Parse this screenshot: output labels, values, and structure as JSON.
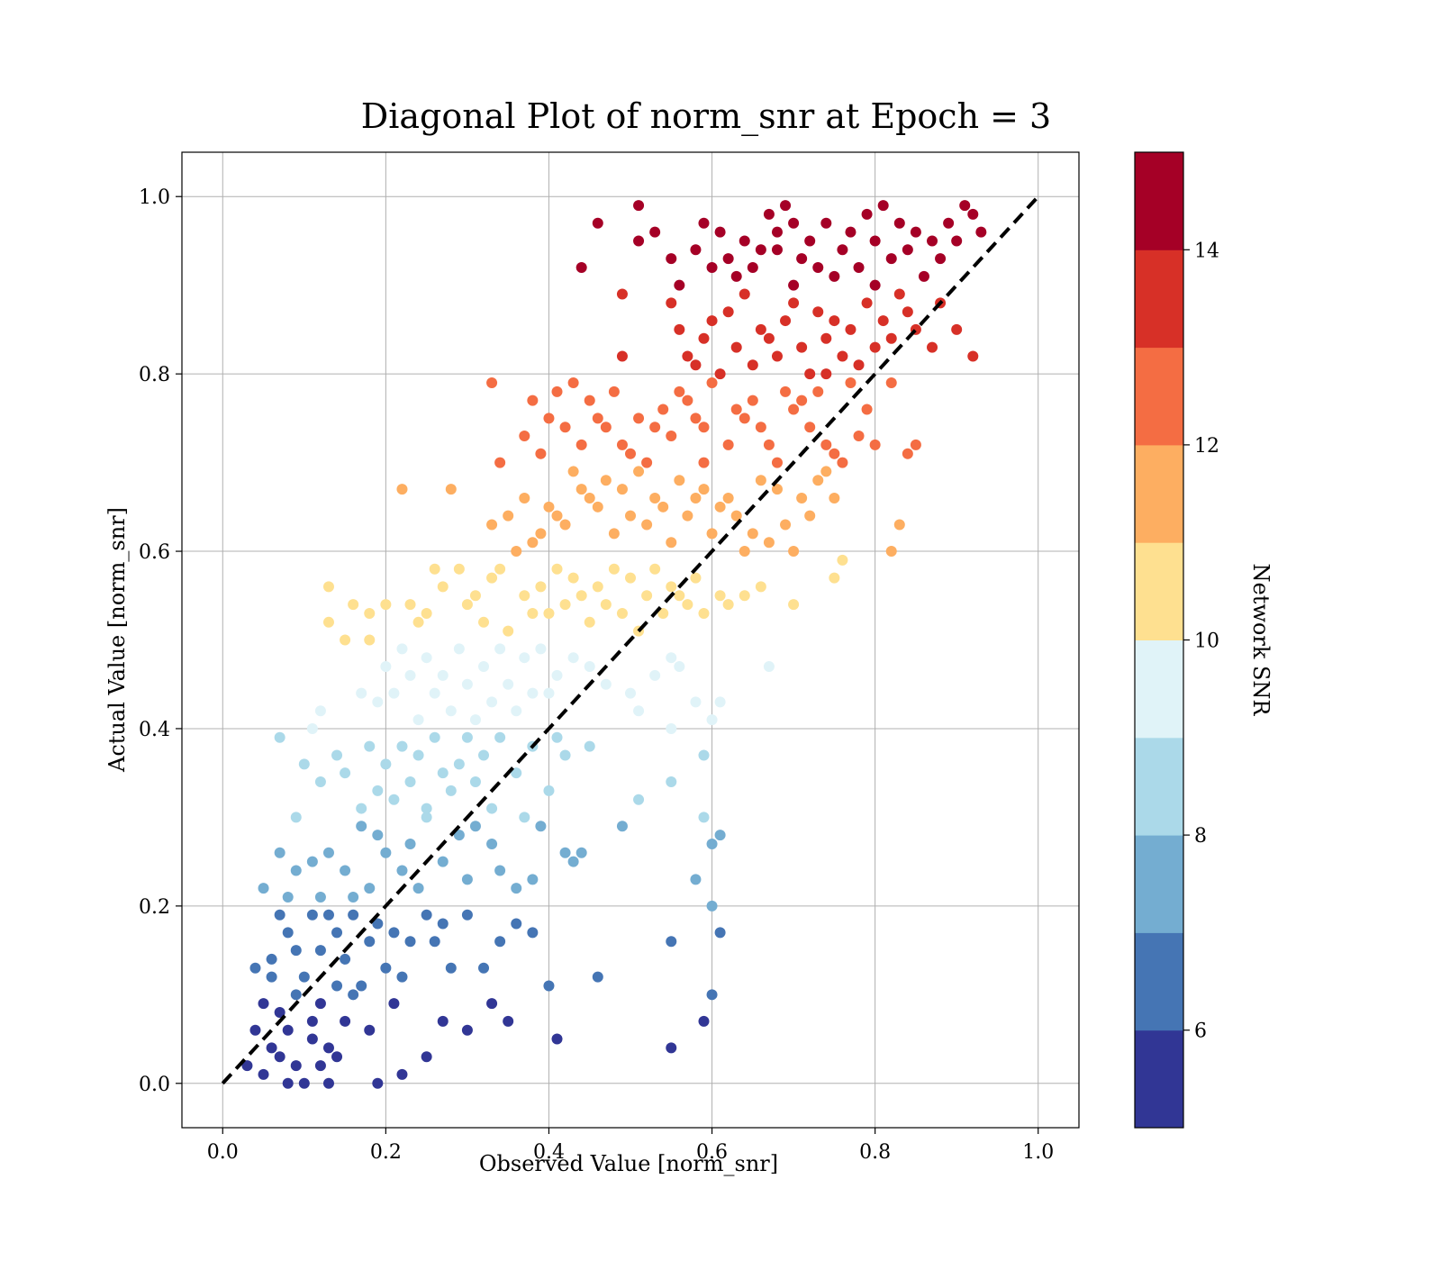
{
  "chart_data": {
    "type": "scatter",
    "title": "Diagonal Plot of norm_snr at Epoch = 3",
    "xlabel": "Observed Value [norm_snr]",
    "ylabel": "Actual Value [norm_snr]",
    "xlim": [
      -0.05,
      1.05
    ],
    "ylim": [
      -0.05,
      1.05
    ],
    "xticks": [
      0.0,
      0.2,
      0.4,
      0.6,
      0.8,
      1.0
    ],
    "yticks": [
      0.0,
      0.2,
      0.4,
      0.6,
      0.8,
      1.0
    ],
    "xtick_labels": [
      "0.0",
      "0.2",
      "0.4",
      "0.6",
      "0.8",
      "1.0"
    ],
    "ytick_labels": [
      "0.0",
      "0.2",
      "0.4",
      "0.6",
      "0.8",
      "1.0"
    ],
    "grid": true,
    "reference_line": {
      "x": [
        0,
        1
      ],
      "y": [
        0,
        1
      ],
      "style": "dashed",
      "color": "#000000"
    },
    "colorbar": {
      "label": "Network SNR",
      "range": [
        5,
        15
      ],
      "ticks": [
        6,
        8,
        10,
        12,
        14
      ],
      "tick_labels": [
        "6",
        "8",
        "10",
        "12",
        "14"
      ],
      "colors": [
        "#313695",
        "#4575b4",
        "#74add1",
        "#abd9e9",
        "#e0f3f8",
        "#fee090",
        "#fdae61",
        "#f46d43",
        "#d73027",
        "#a50026"
      ]
    },
    "points": [
      [
        0.03,
        0.02
      ],
      [
        0.05,
        0.01
      ],
      [
        0.06,
        0.04
      ],
      [
        0.07,
        0.03
      ],
      [
        0.08,
        0.06
      ],
      [
        0.09,
        0.02
      ],
      [
        0.1,
        0.0
      ],
      [
        0.11,
        0.05
      ],
      [
        0.12,
        0.09
      ],
      [
        0.13,
        0.0
      ],
      [
        0.14,
        0.03
      ],
      [
        0.15,
        0.07
      ],
      [
        0.05,
        0.09
      ],
      [
        0.07,
        0.08
      ],
      [
        0.09,
        0.1
      ],
      [
        0.11,
        0.07
      ],
      [
        0.13,
        0.04
      ],
      [
        0.16,
        0.1
      ],
      [
        0.18,
        0.06
      ],
      [
        0.19,
        0.0
      ],
      [
        0.21,
        0.09
      ],
      [
        0.22,
        0.01
      ],
      [
        0.25,
        0.03
      ],
      [
        0.27,
        0.07
      ],
      [
        0.3,
        0.06
      ],
      [
        0.33,
        0.09
      ],
      [
        0.35,
        0.07
      ],
      [
        0.41,
        0.05
      ],
      [
        0.55,
        0.04
      ],
      [
        0.59,
        0.07
      ],
      [
        0.6,
        0.1
      ],
      [
        0.08,
        0.0
      ],
      [
        0.12,
        0.02
      ],
      [
        0.04,
        0.06
      ],
      [
        0.06,
        0.12
      ],
      [
        0.04,
        0.13
      ],
      [
        0.06,
        0.14
      ],
      [
        0.08,
        0.17
      ],
      [
        0.1,
        0.12
      ],
      [
        0.11,
        0.19
      ],
      [
        0.12,
        0.15
      ],
      [
        0.13,
        0.19
      ],
      [
        0.14,
        0.17
      ],
      [
        0.15,
        0.14
      ],
      [
        0.16,
        0.19
      ],
      [
        0.17,
        0.11
      ],
      [
        0.18,
        0.16
      ],
      [
        0.2,
        0.13
      ],
      [
        0.21,
        0.17
      ],
      [
        0.22,
        0.12
      ],
      [
        0.23,
        0.16
      ],
      [
        0.25,
        0.19
      ],
      [
        0.26,
        0.16
      ],
      [
        0.28,
        0.13
      ],
      [
        0.3,
        0.19
      ],
      [
        0.32,
        0.13
      ],
      [
        0.34,
        0.16
      ],
      [
        0.36,
        0.18
      ],
      [
        0.38,
        0.17
      ],
      [
        0.4,
        0.11
      ],
      [
        0.46,
        0.12
      ],
      [
        0.55,
        0.16
      ],
      [
        0.6,
        0.2
      ],
      [
        0.61,
        0.17
      ],
      [
        0.07,
        0.19
      ],
      [
        0.09,
        0.15
      ],
      [
        0.14,
        0.11
      ],
      [
        0.19,
        0.18
      ],
      [
        0.27,
        0.18
      ],
      [
        0.05,
        0.22
      ],
      [
        0.07,
        0.26
      ],
      [
        0.09,
        0.24
      ],
      [
        0.11,
        0.25
      ],
      [
        0.12,
        0.21
      ],
      [
        0.13,
        0.26
      ],
      [
        0.15,
        0.24
      ],
      [
        0.17,
        0.29
      ],
      [
        0.18,
        0.22
      ],
      [
        0.19,
        0.28
      ],
      [
        0.2,
        0.26
      ],
      [
        0.22,
        0.24
      ],
      [
        0.23,
        0.27
      ],
      [
        0.24,
        0.22
      ],
      [
        0.25,
        0.3
      ],
      [
        0.27,
        0.25
      ],
      [
        0.29,
        0.28
      ],
      [
        0.3,
        0.23
      ],
      [
        0.31,
        0.29
      ],
      [
        0.33,
        0.27
      ],
      [
        0.34,
        0.24
      ],
      [
        0.36,
        0.22
      ],
      [
        0.38,
        0.23
      ],
      [
        0.39,
        0.29
      ],
      [
        0.42,
        0.26
      ],
      [
        0.43,
        0.25
      ],
      [
        0.44,
        0.26
      ],
      [
        0.49,
        0.29
      ],
      [
        0.58,
        0.23
      ],
      [
        0.6,
        0.27
      ],
      [
        0.61,
        0.28
      ],
      [
        0.08,
        0.21
      ],
      [
        0.16,
        0.21
      ],
      [
        0.07,
        0.39
      ],
      [
        0.1,
        0.36
      ],
      [
        0.12,
        0.34
      ],
      [
        0.14,
        0.37
      ],
      [
        0.15,
        0.35
      ],
      [
        0.17,
        0.31
      ],
      [
        0.18,
        0.38
      ],
      [
        0.19,
        0.33
      ],
      [
        0.2,
        0.36
      ],
      [
        0.21,
        0.32
      ],
      [
        0.22,
        0.38
      ],
      [
        0.23,
        0.34
      ],
      [
        0.24,
        0.37
      ],
      [
        0.25,
        0.31
      ],
      [
        0.26,
        0.39
      ],
      [
        0.27,
        0.35
      ],
      [
        0.28,
        0.33
      ],
      [
        0.29,
        0.36
      ],
      [
        0.3,
        0.39
      ],
      [
        0.31,
        0.34
      ],
      [
        0.32,
        0.37
      ],
      [
        0.33,
        0.31
      ],
      [
        0.34,
        0.39
      ],
      [
        0.36,
        0.35
      ],
      [
        0.37,
        0.3
      ],
      [
        0.38,
        0.38
      ],
      [
        0.4,
        0.33
      ],
      [
        0.41,
        0.39
      ],
      [
        0.42,
        0.37
      ],
      [
        0.45,
        0.38
      ],
      [
        0.51,
        0.32
      ],
      [
        0.55,
        0.34
      ],
      [
        0.55,
        0.4
      ],
      [
        0.59,
        0.37
      ],
      [
        0.59,
        0.3
      ],
      [
        0.09,
        0.3
      ],
      [
        0.12,
        0.42
      ],
      [
        0.15,
        0.5
      ],
      [
        0.17,
        0.44
      ],
      [
        0.18,
        0.5
      ],
      [
        0.19,
        0.43
      ],
      [
        0.2,
        0.47
      ],
      [
        0.21,
        0.44
      ],
      [
        0.22,
        0.49
      ],
      [
        0.23,
        0.46
      ],
      [
        0.24,
        0.41
      ],
      [
        0.25,
        0.48
      ],
      [
        0.26,
        0.44
      ],
      [
        0.27,
        0.46
      ],
      [
        0.28,
        0.42
      ],
      [
        0.29,
        0.49
      ],
      [
        0.3,
        0.45
      ],
      [
        0.31,
        0.41
      ],
      [
        0.32,
        0.47
      ],
      [
        0.33,
        0.43
      ],
      [
        0.34,
        0.49
      ],
      [
        0.35,
        0.45
      ],
      [
        0.36,
        0.42
      ],
      [
        0.37,
        0.48
      ],
      [
        0.38,
        0.44
      ],
      [
        0.39,
        0.49
      ],
      [
        0.4,
        0.44
      ],
      [
        0.41,
        0.46
      ],
      [
        0.43,
        0.48
      ],
      [
        0.45,
        0.47
      ],
      [
        0.47,
        0.45
      ],
      [
        0.5,
        0.44
      ],
      [
        0.51,
        0.42
      ],
      [
        0.53,
        0.46
      ],
      [
        0.55,
        0.48
      ],
      [
        0.56,
        0.47
      ],
      [
        0.58,
        0.43
      ],
      [
        0.6,
        0.41
      ],
      [
        0.61,
        0.43
      ],
      [
        0.67,
        0.47
      ],
      [
        0.11,
        0.4
      ],
      [
        0.13,
        0.52
      ],
      [
        0.13,
        0.56
      ],
      [
        0.16,
        0.54
      ],
      [
        0.18,
        0.53
      ],
      [
        0.2,
        0.54
      ],
      [
        0.23,
        0.54
      ],
      [
        0.24,
        0.52
      ],
      [
        0.25,
        0.53
      ],
      [
        0.26,
        0.58
      ],
      [
        0.27,
        0.56
      ],
      [
        0.29,
        0.58
      ],
      [
        0.3,
        0.54
      ],
      [
        0.31,
        0.55
      ],
      [
        0.32,
        0.52
      ],
      [
        0.33,
        0.57
      ],
      [
        0.34,
        0.58
      ],
      [
        0.35,
        0.51
      ],
      [
        0.37,
        0.55
      ],
      [
        0.38,
        0.53
      ],
      [
        0.39,
        0.56
      ],
      [
        0.4,
        0.53
      ],
      [
        0.41,
        0.58
      ],
      [
        0.42,
        0.54
      ],
      [
        0.43,
        0.57
      ],
      [
        0.44,
        0.55
      ],
      [
        0.45,
        0.52
      ],
      [
        0.46,
        0.56
      ],
      [
        0.47,
        0.54
      ],
      [
        0.48,
        0.58
      ],
      [
        0.49,
        0.53
      ],
      [
        0.5,
        0.57
      ],
      [
        0.51,
        0.51
      ],
      [
        0.52,
        0.55
      ],
      [
        0.53,
        0.58
      ],
      [
        0.54,
        0.53
      ],
      [
        0.55,
        0.56
      ],
      [
        0.56,
        0.55
      ],
      [
        0.57,
        0.54
      ],
      [
        0.58,
        0.57
      ],
      [
        0.59,
        0.53
      ],
      [
        0.61,
        0.55
      ],
      [
        0.62,
        0.54
      ],
      [
        0.64,
        0.55
      ],
      [
        0.66,
        0.56
      ],
      [
        0.7,
        0.54
      ],
      [
        0.75,
        0.57
      ],
      [
        0.76,
        0.59
      ],
      [
        0.82,
        0.6
      ],
      [
        0.22,
        0.67
      ],
      [
        0.28,
        0.67
      ],
      [
        0.33,
        0.63
      ],
      [
        0.35,
        0.64
      ],
      [
        0.36,
        0.6
      ],
      [
        0.37,
        0.66
      ],
      [
        0.38,
        0.61
      ],
      [
        0.39,
        0.62
      ],
      [
        0.4,
        0.65
      ],
      [
        0.41,
        0.64
      ],
      [
        0.42,
        0.63
      ],
      [
        0.43,
        0.69
      ],
      [
        0.44,
        0.67
      ],
      [
        0.45,
        0.66
      ],
      [
        0.46,
        0.65
      ],
      [
        0.47,
        0.68
      ],
      [
        0.48,
        0.62
      ],
      [
        0.49,
        0.67
      ],
      [
        0.5,
        0.64
      ],
      [
        0.51,
        0.69
      ],
      [
        0.52,
        0.63
      ],
      [
        0.53,
        0.66
      ],
      [
        0.54,
        0.65
      ],
      [
        0.55,
        0.61
      ],
      [
        0.56,
        0.68
      ],
      [
        0.57,
        0.64
      ],
      [
        0.58,
        0.66
      ],
      [
        0.59,
        0.67
      ],
      [
        0.6,
        0.62
      ],
      [
        0.61,
        0.65
      ],
      [
        0.62,
        0.66
      ],
      [
        0.63,
        0.64
      ],
      [
        0.64,
        0.6
      ],
      [
        0.65,
        0.62
      ],
      [
        0.66,
        0.68
      ],
      [
        0.67,
        0.61
      ],
      [
        0.68,
        0.67
      ],
      [
        0.69,
        0.63
      ],
      [
        0.7,
        0.6
      ],
      [
        0.71,
        0.66
      ],
      [
        0.72,
        0.64
      ],
      [
        0.73,
        0.68
      ],
      [
        0.74,
        0.69
      ],
      [
        0.75,
        0.66
      ],
      [
        0.83,
        0.63
      ],
      [
        0.59,
        0.7
      ],
      [
        0.33,
        0.79
      ],
      [
        0.34,
        0.7
      ],
      [
        0.37,
        0.73
      ],
      [
        0.38,
        0.77
      ],
      [
        0.39,
        0.71
      ],
      [
        0.4,
        0.75
      ],
      [
        0.41,
        0.78
      ],
      [
        0.42,
        0.74
      ],
      [
        0.43,
        0.79
      ],
      [
        0.44,
        0.72
      ],
      [
        0.45,
        0.77
      ],
      [
        0.46,
        0.75
      ],
      [
        0.47,
        0.74
      ],
      [
        0.48,
        0.78
      ],
      [
        0.49,
        0.72
      ],
      [
        0.5,
        0.71
      ],
      [
        0.51,
        0.75
      ],
      [
        0.52,
        0.7
      ],
      [
        0.53,
        0.74
      ],
      [
        0.54,
        0.76
      ],
      [
        0.55,
        0.73
      ],
      [
        0.56,
        0.78
      ],
      [
        0.57,
        0.77
      ],
      [
        0.58,
        0.75
      ],
      [
        0.59,
        0.74
      ],
      [
        0.6,
        0.79
      ],
      [
        0.62,
        0.72
      ],
      [
        0.63,
        0.76
      ],
      [
        0.64,
        0.75
      ],
      [
        0.65,
        0.77
      ],
      [
        0.66,
        0.74
      ],
      [
        0.67,
        0.72
      ],
      [
        0.68,
        0.7
      ],
      [
        0.69,
        0.78
      ],
      [
        0.7,
        0.76
      ],
      [
        0.71,
        0.77
      ],
      [
        0.72,
        0.74
      ],
      [
        0.73,
        0.78
      ],
      [
        0.74,
        0.72
      ],
      [
        0.75,
        0.71
      ],
      [
        0.76,
        0.7
      ],
      [
        0.77,
        0.79
      ],
      [
        0.78,
        0.73
      ],
      [
        0.79,
        0.76
      ],
      [
        0.8,
        0.72
      ],
      [
        0.82,
        0.79
      ],
      [
        0.84,
        0.71
      ],
      [
        0.85,
        0.72
      ],
      [
        0.49,
        0.89
      ],
      [
        0.49,
        0.82
      ],
      [
        0.55,
        0.88
      ],
      [
        0.56,
        0.85
      ],
      [
        0.57,
        0.82
      ],
      [
        0.58,
        0.81
      ],
      [
        0.59,
        0.84
      ],
      [
        0.6,
        0.86
      ],
      [
        0.61,
        0.8
      ],
      [
        0.62,
        0.87
      ],
      [
        0.63,
        0.83
      ],
      [
        0.64,
        0.89
      ],
      [
        0.65,
        0.81
      ],
      [
        0.66,
        0.85
      ],
      [
        0.67,
        0.84
      ],
      [
        0.68,
        0.82
      ],
      [
        0.69,
        0.86
      ],
      [
        0.7,
        0.88
      ],
      [
        0.71,
        0.83
      ],
      [
        0.72,
        0.8
      ],
      [
        0.73,
        0.87
      ],
      [
        0.74,
        0.84
      ],
      [
        0.75,
        0.86
      ],
      [
        0.76,
        0.82
      ],
      [
        0.77,
        0.85
      ],
      [
        0.78,
        0.81
      ],
      [
        0.79,
        0.88
      ],
      [
        0.8,
        0.83
      ],
      [
        0.81,
        0.86
      ],
      [
        0.82,
        0.84
      ],
      [
        0.83,
        0.89
      ],
      [
        0.84,
        0.87
      ],
      [
        0.85,
        0.85
      ],
      [
        0.87,
        0.83
      ],
      [
        0.88,
        0.88
      ],
      [
        0.9,
        0.85
      ],
      [
        0.92,
        0.82
      ],
      [
        0.74,
        0.8
      ],
      [
        0.46,
        0.97
      ],
      [
        0.44,
        0.92
      ],
      [
        0.51,
        0.99
      ],
      [
        0.51,
        0.95
      ],
      [
        0.53,
        0.96
      ],
      [
        0.55,
        0.93
      ],
      [
        0.56,
        0.9
      ],
      [
        0.58,
        0.94
      ],
      [
        0.59,
        0.97
      ],
      [
        0.6,
        0.92
      ],
      [
        0.61,
        0.96
      ],
      [
        0.62,
        0.93
      ],
      [
        0.63,
        0.91
      ],
      [
        0.64,
        0.95
      ],
      [
        0.65,
        0.92
      ],
      [
        0.66,
        0.94
      ],
      [
        0.67,
        0.98
      ],
      [
        0.68,
        0.96
      ],
      [
        0.69,
        0.99
      ],
      [
        0.7,
        0.97
      ],
      [
        0.71,
        0.93
      ],
      [
        0.72,
        0.95
      ],
      [
        0.73,
        0.92
      ],
      [
        0.74,
        0.97
      ],
      [
        0.75,
        0.91
      ],
      [
        0.76,
        0.94
      ],
      [
        0.77,
        0.96
      ],
      [
        0.78,
        0.92
      ],
      [
        0.79,
        0.98
      ],
      [
        0.8,
        0.95
      ],
      [
        0.81,
        0.99
      ],
      [
        0.82,
        0.93
      ],
      [
        0.83,
        0.97
      ],
      [
        0.84,
        0.94
      ],
      [
        0.85,
        0.96
      ],
      [
        0.86,
        0.91
      ],
      [
        0.87,
        0.95
      ],
      [
        0.88,
        0.93
      ],
      [
        0.89,
        0.97
      ],
      [
        0.9,
        0.95
      ],
      [
        0.91,
        0.99
      ],
      [
        0.92,
        0.98
      ],
      [
        0.93,
        0.96
      ],
      [
        0.68,
        0.94
      ],
      [
        0.7,
        0.9
      ],
      [
        0.8,
        0.9
      ]
    ]
  }
}
